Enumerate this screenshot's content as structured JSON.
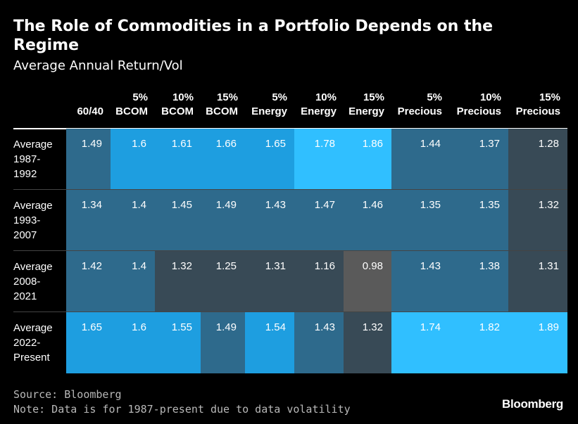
{
  "title": "The Role of Commodities in a Portfolio Depends on the Regime",
  "subtitle": "Average Annual Return/Vol",
  "source": "Source: Bloomberg",
  "note": "Note: Data is for 1987-present due to data volatility",
  "brand": "Bloomberg",
  "colors": {
    "background": "#000000",
    "lowest": "#5a5a5a",
    "low": "#384a56",
    "mid": "#2e6a8c",
    "high": "#1e9ee0",
    "highest": "#30bfff"
  },
  "chart_data": {
    "type": "table",
    "title": "The Role of Commodities in a Portfolio Depends on the Regime",
    "subtitle": "Average Annual Return/Vol",
    "columns": [
      [
        "",
        "60/40"
      ],
      [
        "5%",
        "BCOM"
      ],
      [
        "10%",
        "BCOM"
      ],
      [
        "15%",
        "BCOM"
      ],
      [
        "5%",
        "Energy"
      ],
      [
        "10%",
        "Energy"
      ],
      [
        "15%",
        "Energy"
      ],
      [
        "5%",
        "Precious"
      ],
      [
        "10%",
        "Precious"
      ],
      [
        "15%",
        "Precious"
      ]
    ],
    "rows": [
      {
        "label": [
          "Average",
          "1987-",
          "1992"
        ],
        "values": [
          "1.49",
          "1.6",
          "1.61",
          "1.66",
          "1.65",
          "1.78",
          "1.86",
          "1.44",
          "1.37",
          "1.28"
        ]
      },
      {
        "label": [
          "Average",
          "1993-",
          "2007"
        ],
        "values": [
          "1.34",
          "1.4",
          "1.45",
          "1.49",
          "1.43",
          "1.47",
          "1.46",
          "1.35",
          "1.35",
          "1.32"
        ]
      },
      {
        "label": [
          "Average",
          "2008-",
          "2021"
        ],
        "values": [
          "1.42",
          "1.4",
          "1.32",
          "1.25",
          "1.31",
          "1.16",
          "0.98",
          "1.43",
          "1.38",
          "1.31"
        ]
      },
      {
        "label": [
          "Average",
          "2022-",
          "Present"
        ],
        "values": [
          "1.65",
          "1.6",
          "1.55",
          "1.49",
          "1.54",
          "1.43",
          "1.32",
          "1.74",
          "1.82",
          "1.89"
        ]
      }
    ]
  }
}
